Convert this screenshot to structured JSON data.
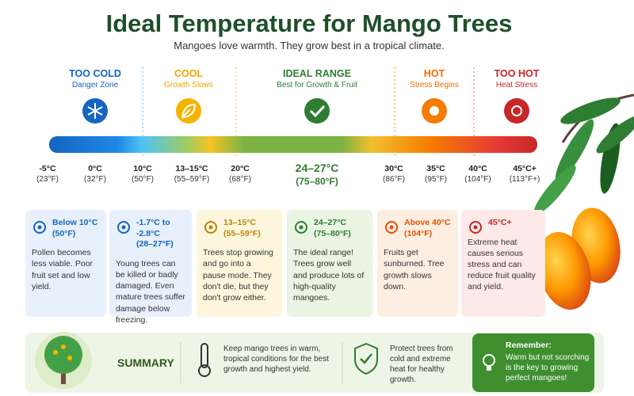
{
  "header": {
    "title": "Ideal Temperature for Mango Trees",
    "subtitle": "Mangoes love warmth. They grow best in a tropical climate."
  },
  "zones": [
    {
      "label": "TOO COLD",
      "sub": "Danger Zone"
    },
    {
      "label": "COOL",
      "sub": "Growth Slows"
    },
    {
      "label": "IDEAL RANGE",
      "sub": "Best for Growth & Fruit"
    },
    {
      "label": "HOT",
      "sub": "Stress Begins"
    },
    {
      "label": "TOO HOT",
      "sub": "Heat Stress"
    }
  ],
  "scale": [
    {
      "c": "-5°C",
      "f": "(23°F)"
    },
    {
      "c": "0°C",
      "f": "(32°F)"
    },
    {
      "c": "10°C",
      "f": "(50°F)"
    },
    {
      "c": "13–15°C",
      "f": "(55–59°F)"
    },
    {
      "c": "20°C",
      "f": "(68°F)"
    },
    {
      "c": "24–27°C",
      "f": "(75–80°F)"
    },
    {
      "c": "30°C",
      "f": "(86°F)"
    },
    {
      "c": "35°C",
      "f": "(95°F)"
    },
    {
      "c": "40°C",
      "f": "(104°F)"
    },
    {
      "c": "45°C+",
      "f": "(113°F+)"
    }
  ],
  "cards": [
    {
      "heading": "Below 10°C",
      "sub": "(50°F)",
      "text": "Pollen becomes less viable. Poor fruit set and low yield."
    },
    {
      "heading": "-1.7°C to -2.8°C",
      "sub": "(28–27°F)",
      "text": "Young trees can be killed or badly damaged. Even mature trees suffer damage below freezing."
    },
    {
      "heading": "13–15°C",
      "sub": "(55–59°F)",
      "text": "Trees stop growing and go into a pause mode. They don't die, but they don't grow either."
    },
    {
      "heading": "24–27°C",
      "sub": "(75–80°F)",
      "text": "The ideal range! Trees grow well and produce lots of high-quality mangoes."
    },
    {
      "heading": "Above 40°C",
      "sub": "(104°F)",
      "text": "Fruits get sunburned. Tree growth slows down."
    },
    {
      "heading": "45°C+",
      "text": "Extreme heat causes serious stress and can reduce fruit quality and yield."
    }
  ],
  "summary": {
    "title": "SUMMARY",
    "items": [
      "Keep mango trees in warm, tropical conditions for the best growth and highest yield.",
      "Protect trees from cold and extreme heat for healthy growth."
    ],
    "remember_title": "Remember:",
    "remember_text": "Warm but not scorching is the key to growing perfect mangoes!"
  }
}
